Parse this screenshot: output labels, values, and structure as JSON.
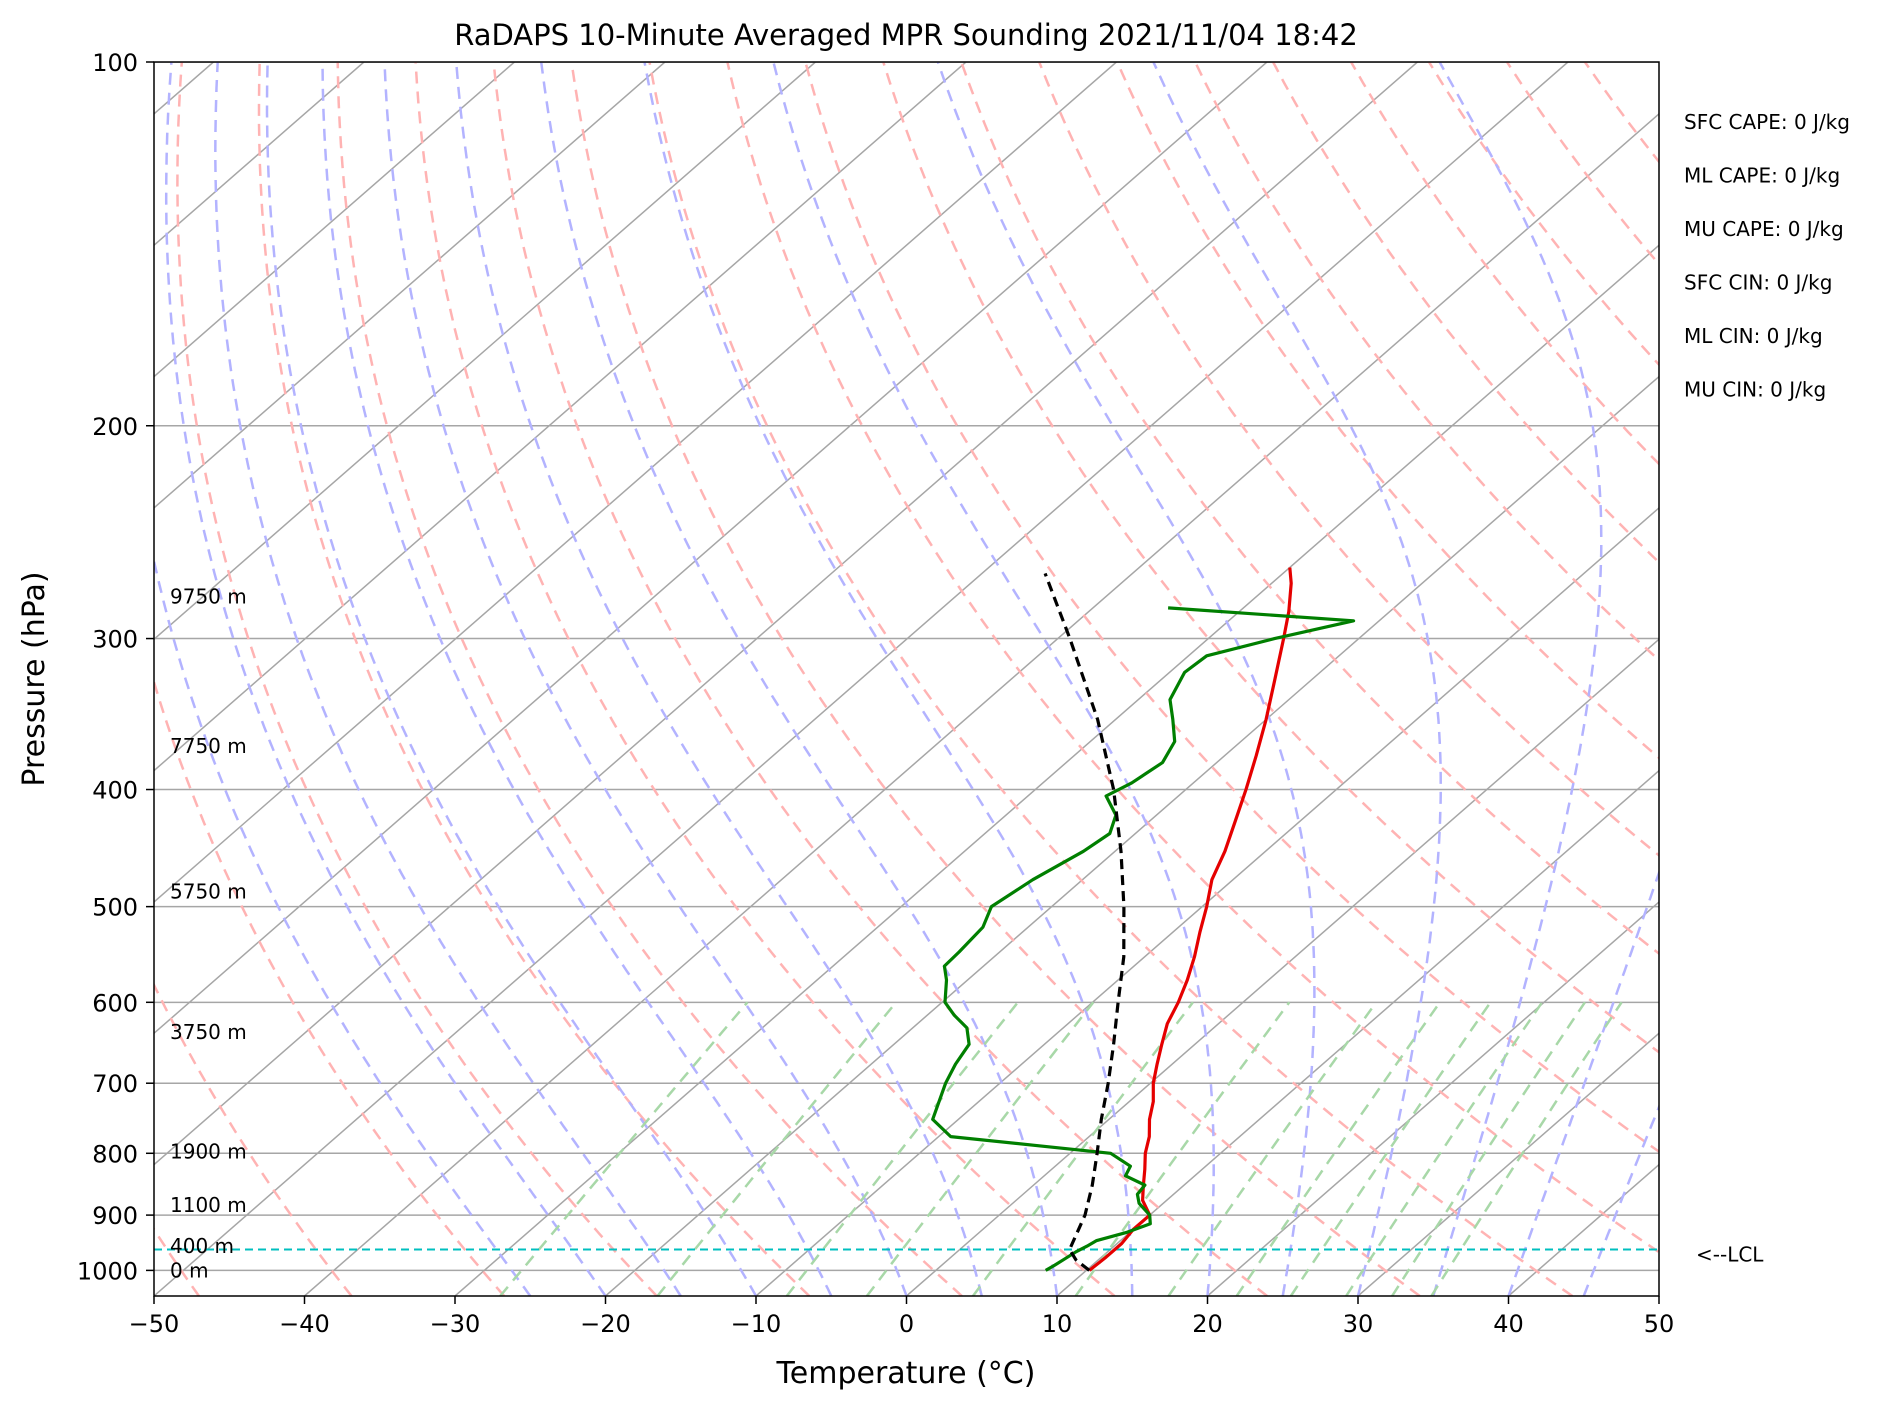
{
  "chart_data": {
    "type": "line",
    "title": "RaDAPS 10-Minute Averaged MPR Sounding 2021/11/04 18:42",
    "xlabel": "Temperature (°C)",
    "ylabel": "Pressure (hPa)",
    "xlim": [
      -50,
      50
    ],
    "ylim": [
      1050,
      100
    ],
    "y_scale": "log",
    "grid": true,
    "x_ticks": [
      "−50",
      "−40",
      "−30",
      "−20",
      "−10",
      "0",
      "10",
      "20",
      "30",
      "40",
      "50"
    ],
    "x_tick_values": [
      -50,
      -40,
      -30,
      -20,
      -10,
      0,
      10,
      20,
      30,
      40,
      50
    ],
    "y_ticks": [
      "100",
      "200",
      "300",
      "400",
      "500",
      "600",
      "700",
      "800",
      "900",
      "1000"
    ],
    "y_tick_values": [
      100,
      200,
      300,
      400,
      500,
      600,
      700,
      800,
      900,
      1000
    ],
    "series": [
      {
        "role": "temperature",
        "color": "#e50000",
        "points": [
          [
            1000,
            10.2
          ],
          [
            975,
            10.3
          ],
          [
            950,
            10.3
          ],
          [
            925,
            10.0
          ],
          [
            900,
            10.0
          ],
          [
            875,
            8.4
          ],
          [
            850,
            7.3
          ],
          [
            825,
            6.2
          ],
          [
            800,
            5.0
          ],
          [
            775,
            4.0
          ],
          [
            750,
            2.7
          ],
          [
            725,
            1.6
          ],
          [
            700,
            0.2
          ],
          [
            675,
            -1.0
          ],
          [
            650,
            -2.2
          ],
          [
            625,
            -3.4
          ],
          [
            600,
            -4.3
          ],
          [
            575,
            -5.4
          ],
          [
            550,
            -6.7
          ],
          [
            525,
            -8.2
          ],
          [
            500,
            -9.7
          ],
          [
            475,
            -11.4
          ],
          [
            450,
            -12.7
          ],
          [
            425,
            -14.3
          ],
          [
            400,
            -16.0
          ],
          [
            375,
            -17.9
          ],
          [
            350,
            -20.0
          ],
          [
            325,
            -22.4
          ],
          [
            300,
            -25.0
          ],
          [
            285,
            -26.7
          ],
          [
            270,
            -28.7
          ],
          [
            262,
            -30.0
          ]
        ]
      },
      {
        "role": "dewpoint",
        "color": "#007f00",
        "points": [
          [
            1000,
            7.3
          ],
          [
            990,
            7.5
          ],
          [
            978,
            7.7
          ],
          [
            965,
            7.9
          ],
          [
            955,
            8.2
          ],
          [
            945,
            8.4
          ],
          [
            930,
            9.8
          ],
          [
            915,
            10.7
          ],
          [
            900,
            10.0
          ],
          [
            880,
            8.4
          ],
          [
            865,
            7.6
          ],
          [
            850,
            7.4
          ],
          [
            835,
            5.4
          ],
          [
            820,
            5.0
          ],
          [
            800,
            2.7
          ],
          [
            775,
            -9.2
          ],
          [
            750,
            -11.7
          ],
          [
            700,
            -13.6
          ],
          [
            675,
            -14.4
          ],
          [
            650,
            -15.0
          ],
          [
            630,
            -16.4
          ],
          [
            615,
            -18.2
          ],
          [
            600,
            -19.8
          ],
          [
            575,
            -21.4
          ],
          [
            560,
            -22.6
          ],
          [
            545,
            -22.7
          ],
          [
            520,
            -23.0
          ],
          [
            500,
            -24.0
          ],
          [
            475,
            -23.3
          ],
          [
            450,
            -22.1
          ],
          [
            435,
            -21.7
          ],
          [
            420,
            -22.7
          ],
          [
            405,
            -24.8
          ],
          [
            395,
            -24.1
          ],
          [
            380,
            -23.6
          ],
          [
            365,
            -24.4
          ],
          [
            350,
            -26.2
          ],
          [
            337,
            -27.9
          ],
          [
            320,
            -29.0
          ],
          [
            310,
            -28.8
          ],
          [
            300,
            -25.6
          ],
          [
            290,
            -21.7
          ],
          [
            283,
            -35.0
          ]
        ]
      },
      {
        "role": "parcel",
        "color": "#000000",
        "points": [
          [
            1000,
            10.2
          ],
          [
            980,
            8.5
          ],
          [
            961,
            7.3
          ],
          [
            900,
            5.7
          ],
          [
            850,
            3.9
          ],
          [
            800,
            1.8
          ],
          [
            750,
            -0.5
          ],
          [
            700,
            -2.8
          ],
          [
            650,
            -5.4
          ],
          [
            600,
            -8.3
          ],
          [
            550,
            -11.4
          ],
          [
            500,
            -15.2
          ],
          [
            450,
            -19.6
          ],
          [
            400,
            -24.8
          ],
          [
            350,
            -31.2
          ],
          [
            300,
            -39.2
          ],
          [
            265,
            -45.8
          ]
        ]
      }
    ],
    "height_labels": [
      {
        "text": "9750 m",
        "p": 277
      },
      {
        "text": "7750 m",
        "p": 368
      },
      {
        "text": "5750 m",
        "p": 486
      },
      {
        "text": "3750 m",
        "p": 635
      },
      {
        "text": "1900 m",
        "p": 797
      },
      {
        "text": "1100 m",
        "p": 883
      },
      {
        "text": "400 m",
        "p": 955
      },
      {
        "text": "0 m",
        "p": 1000
      }
    ],
    "lcl": {
      "p": 961,
      "label": "<--LCL"
    },
    "indices": [
      "SFC CAPE: 0 J/kg",
      "ML CAPE: 0 J/kg",
      "MU CAPE: 0 J/kg",
      "SFC CIN: 0 J/kg",
      "ML CIN: 0 J/kg",
      "MU CIN: 0 J/kg"
    ],
    "skew_deg_per_decade": 92,
    "reference_lines": {
      "dry_adiabats_theta_K": [
        213,
        223,
        233,
        243,
        253,
        263,
        273,
        283,
        293,
        303,
        313,
        323,
        333,
        343,
        353,
        363,
        373,
        383,
        393,
        403,
        413,
        423,
        433
      ],
      "moist_adiabats_T0_C": [
        -25,
        -20,
        -15,
        -10,
        -5,
        0,
        5,
        10,
        15,
        20,
        25,
        30,
        35,
        40,
        45
      ],
      "mixing_ratios_gkg": [
        0.4,
        1,
        2,
        3,
        5,
        8,
        12,
        16,
        20,
        25,
        30,
        35
      ],
      "isotherm_step_C": 10
    },
    "colors": {
      "temperature": "#e50000",
      "dewpoint": "#007f00",
      "parcel": "#000000",
      "lcl": "#00bfbf",
      "dry_adiabat": "#ffb3b3",
      "moist_adiabat": "#b3b3ff",
      "mixing_ratio": "#a8d8a8",
      "isotherm": "#a6a6a6"
    }
  }
}
